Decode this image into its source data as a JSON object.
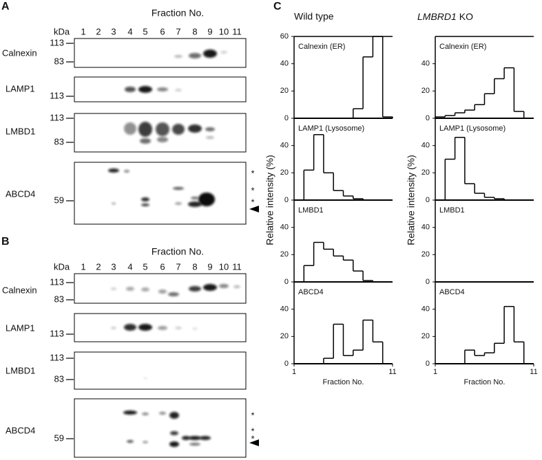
{
  "panel_a": {
    "label": "A",
    "header": "Fraction No.",
    "kda": "kDa",
    "fractions": [
      "1",
      "2",
      "3",
      "4",
      "5",
      "6",
      "7",
      "8",
      "9",
      "10",
      "11"
    ],
    "blots": [
      {
        "name": "Calnexin",
        "markers": [
          "113",
          "83"
        ]
      },
      {
        "name": "LAMP1",
        "markers": [
          "113"
        ]
      },
      {
        "name": "LMBD1",
        "markers": [
          "113",
          "83"
        ]
      },
      {
        "name": "ABCD4",
        "markers": [
          "59"
        ],
        "asterisks": [
          "*",
          "*",
          "*"
        ]
      }
    ]
  },
  "panel_b": {
    "label": "B",
    "header": "Fraction No.",
    "kda": "kDa",
    "fractions": [
      "1",
      "2",
      "3",
      "4",
      "5",
      "6",
      "7",
      "8",
      "9",
      "10",
      "11"
    ],
    "blots": [
      {
        "name": "Calnexin",
        "markers": [
          "113",
          "83"
        ]
      },
      {
        "name": "LAMP1",
        "markers": [
          "113"
        ]
      },
      {
        "name": "LMBD1",
        "markers": [
          "113",
          "83"
        ]
      },
      {
        "name": "ABCD4",
        "markers": [
          "59"
        ],
        "asterisks": [
          "*",
          "*",
          "*"
        ]
      }
    ]
  },
  "panel_c": {
    "label": "C",
    "columns": [
      {
        "title": "Wild type",
        "ylabel": "Relative intensity (%)"
      },
      {
        "title": "LMBRD1",
        "title_suffix": "KO",
        "ylabel": "Relative intensity (%)"
      }
    ]
  },
  "chart_data": [
    {
      "type": "histogram",
      "title": "Calnexin (ER)",
      "bins": [
        1,
        2,
        3,
        4,
        5,
        6,
        7,
        8,
        9,
        10,
        11
      ],
      "values": [
        0,
        0,
        0,
        0,
        0,
        0,
        7,
        45,
        60,
        1
      ],
      "xlim": [
        1,
        11
      ],
      "ylim": [
        0,
        60
      ],
      "yticks": [
        0,
        20,
        40,
        60
      ]
    },
    {
      "type": "histogram",
      "title": "LAMP1 (Lysosome)",
      "bins": [
        1,
        2,
        3,
        4,
        5,
        6,
        7,
        8,
        9,
        10,
        11
      ],
      "values": [
        0,
        22,
        48,
        20,
        7,
        3,
        1,
        0,
        0,
        0
      ],
      "xlim": [
        1,
        11
      ],
      "ylim": [
        0,
        60
      ],
      "yticks": [
        0,
        20,
        40
      ]
    },
    {
      "type": "histogram",
      "title": "LMBD1",
      "bins": [
        1,
        2,
        3,
        4,
        5,
        6,
        7,
        8,
        9,
        10,
        11
      ],
      "values": [
        0,
        12,
        29,
        24,
        19,
        16,
        8,
        1,
        0,
        0
      ],
      "xlim": [
        1,
        11
      ],
      "ylim": [
        0,
        60
      ],
      "yticks": [
        0,
        20,
        40
      ]
    },
    {
      "type": "histogram",
      "title": "ABCD4",
      "bins": [
        1,
        2,
        3,
        4,
        5,
        6,
        7,
        8,
        9,
        10,
        11
      ],
      "values": [
        0,
        0,
        0,
        4,
        29,
        6,
        10,
        32,
        16,
        0
      ],
      "xlim": [
        1,
        11
      ],
      "ylim": [
        0,
        60
      ],
      "yticks": [
        0,
        20,
        40
      ],
      "xticks": [
        1,
        11
      ],
      "xlabel": "Fraction No."
    },
    {
      "type": "histogram",
      "title": "Calnexin (ER)",
      "bins": [
        1,
        2,
        3,
        4,
        5,
        6,
        7,
        8,
        9,
        10,
        11
      ],
      "values": [
        1,
        2,
        4,
        6,
        10,
        18,
        29,
        37,
        5,
        0
      ],
      "xlim": [
        1,
        11
      ],
      "ylim": [
        0,
        60
      ],
      "yticks": [
        0,
        20,
        40
      ]
    },
    {
      "type": "histogram",
      "title": "LAMP1 (Lysosome)",
      "bins": [
        1,
        2,
        3,
        4,
        5,
        6,
        7,
        8,
        9,
        10,
        11
      ],
      "values": [
        0,
        30,
        46,
        12,
        5,
        2,
        1,
        0,
        0,
        0
      ],
      "xlim": [
        1,
        11
      ],
      "ylim": [
        0,
        60
      ],
      "yticks": [
        0,
        20,
        40
      ]
    },
    {
      "type": "histogram",
      "title": "LMBD1",
      "xlim": [
        1,
        11
      ],
      "ylim": [
        0,
        60
      ],
      "yticks": [
        0,
        20,
        40
      ]
    },
    {
      "type": "histogram",
      "title": "ABCD4",
      "bins": [
        1,
        2,
        3,
        4,
        5,
        6,
        7,
        8,
        9,
        10,
        11
      ],
      "values": [
        0,
        0,
        0,
        10,
        6,
        8,
        15,
        42,
        16,
        0
      ],
      "xlim": [
        1,
        11
      ],
      "ylim": [
        0,
        60
      ],
      "yticks": [
        0,
        20,
        40
      ],
      "xticks": [
        1,
        11
      ],
      "xlabel": "Fraction No."
    }
  ]
}
